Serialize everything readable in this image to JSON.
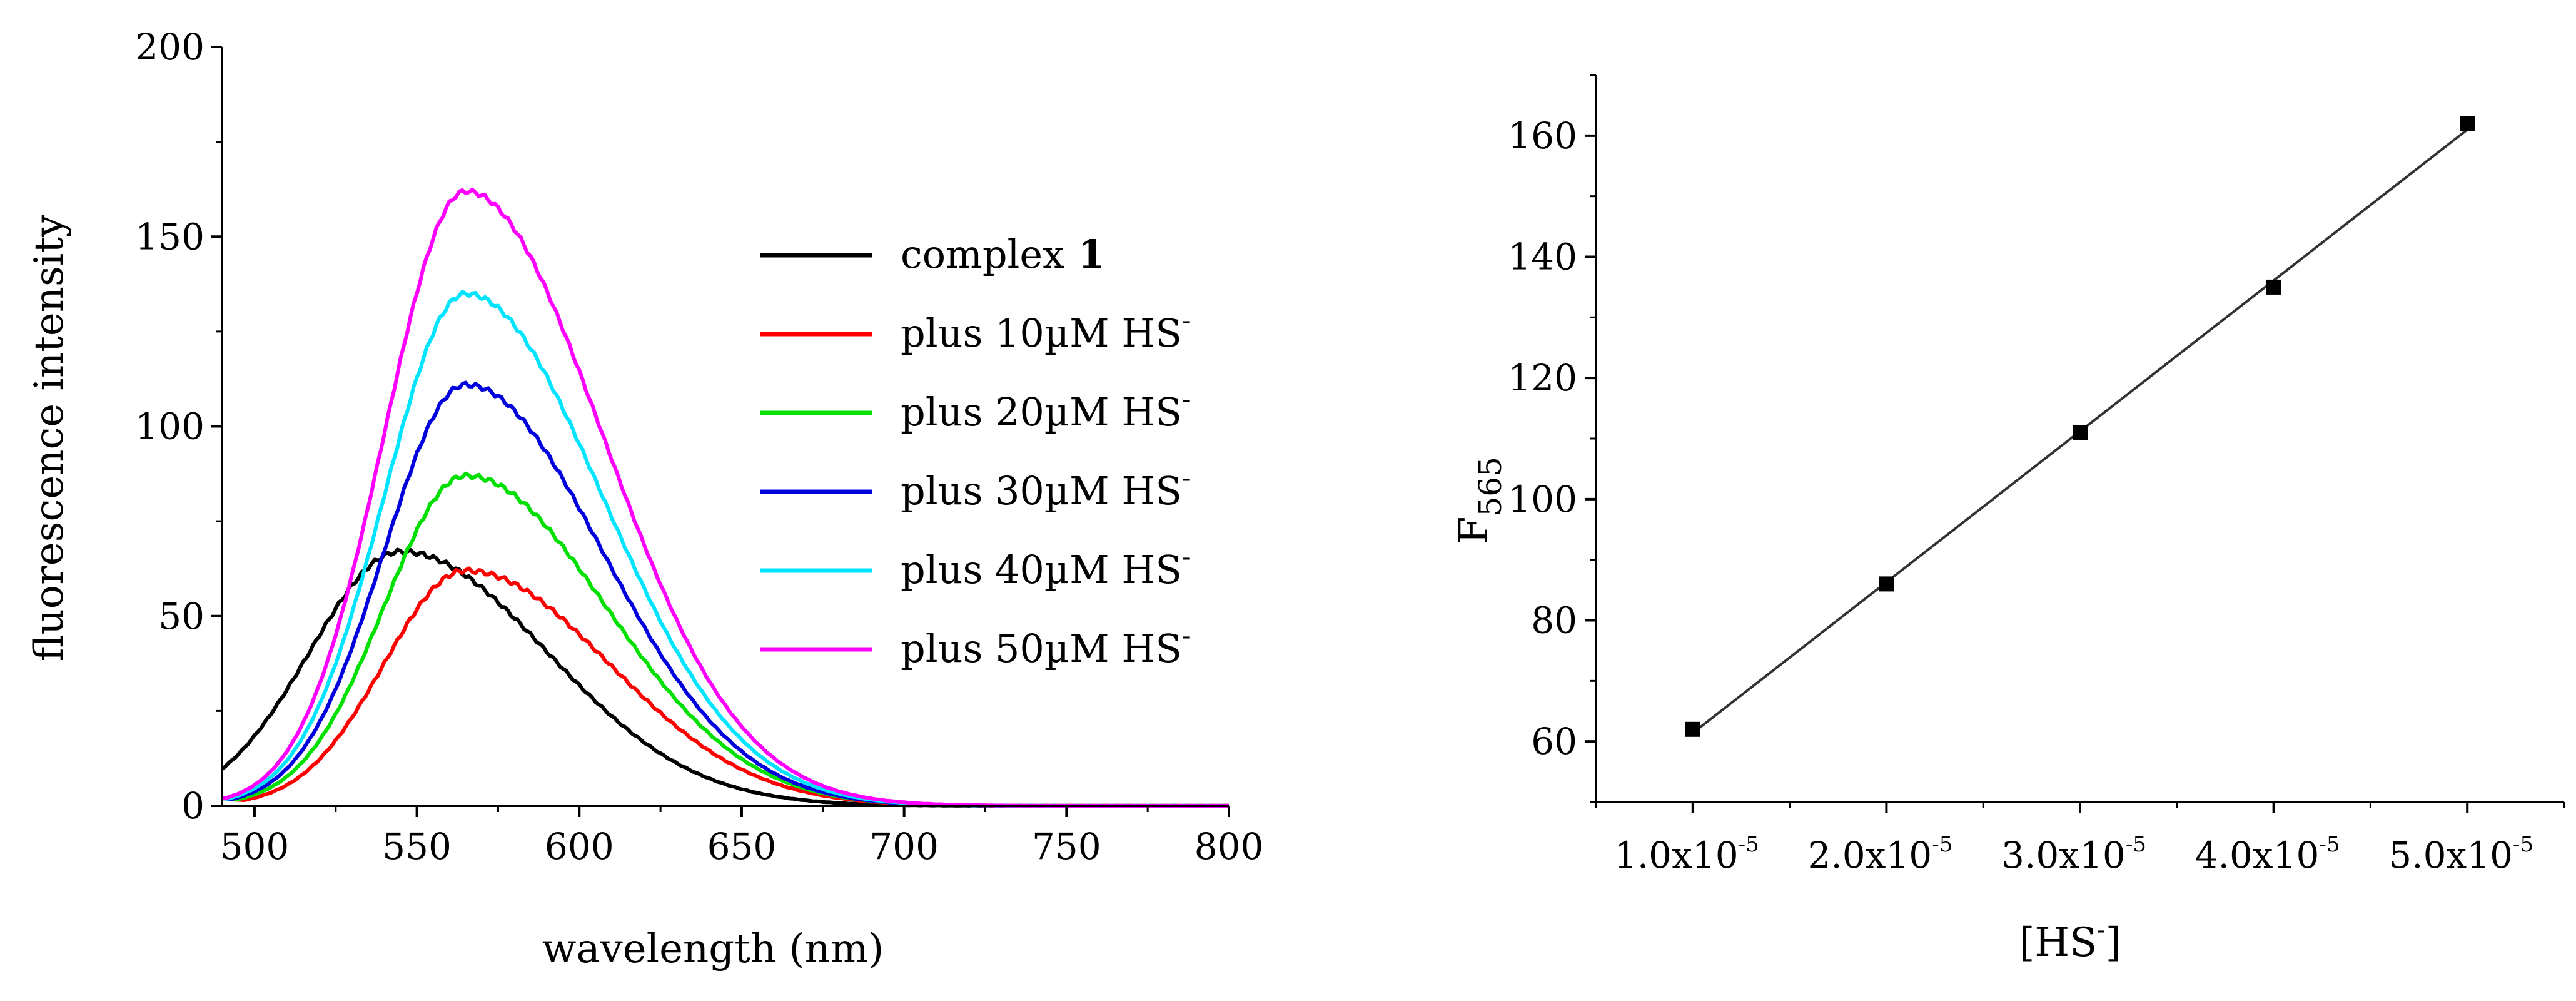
{
  "chart_data": [
    {
      "type": "line",
      "xlabel": "wavelength (nm)",
      "ylabel": "fluorescence intensity",
      "xlim": [
        490,
        800
      ],
      "ylim": [
        0,
        200
      ],
      "xticks": [
        500,
        550,
        600,
        650,
        700,
        750,
        800
      ],
      "yticks": [
        0,
        50,
        100,
        150,
        200
      ],
      "grid": false,
      "legend_position": "right",
      "series": [
        {
          "name": "complex",
          "name_bold": "1",
          "color": "#000000",
          "peak_x": 545,
          "peak_y": 67,
          "sigma_left": 28,
          "sigma_right": 45,
          "start_y": 3
        },
        {
          "name": "plus 10µM HS",
          "superscript": "-",
          "color": "#ff0000",
          "peak_x": 565,
          "peak_y": 62,
          "sigma_left": 25,
          "sigma_right": 44,
          "start_y": 2
        },
        {
          "name": "plus 20µM HS",
          "superscript": "-",
          "color": "#00e000",
          "peak_x": 565,
          "peak_y": 87,
          "sigma_left": 25,
          "sigma_right": 43,
          "start_y": 2
        },
        {
          "name": "plus 30µM HS",
          "superscript": "-",
          "color": "#0000dd",
          "peak_x": 565,
          "peak_y": 111,
          "sigma_left": 25,
          "sigma_right": 42,
          "start_y": 2
        },
        {
          "name": "plus 40µM HS",
          "superscript": "-",
          "color": "#00e5ff",
          "peak_x": 565,
          "peak_y": 135,
          "sigma_left": 25,
          "sigma_right": 42,
          "start_y": 2
        },
        {
          "name": "plus 50µM HS",
          "superscript": "-",
          "color": "#ff00ff",
          "peak_x": 565,
          "peak_y": 162,
          "sigma_left": 25,
          "sigma_right": 42,
          "start_y": 2
        }
      ]
    },
    {
      "type": "scatter",
      "xlabel": "[HS",
      "xlabel_superscript": "-",
      "xlabel_suffix": "]",
      "ylabel": "F",
      "ylabel_subscript": "565",
      "xlim": [
        5e-06,
        5.5e-05
      ],
      "ylim": [
        50,
        170
      ],
      "xticks": [
        1e-05,
        2e-05,
        3e-05,
        4e-05,
        5e-05
      ],
      "xtick_labels": [
        "1.0x10",
        "2.0x10",
        "3.0x10",
        "4.0x10",
        "5.0x10"
      ],
      "xtick_exponent": "-5",
      "yticks": [
        60,
        80,
        100,
        120,
        140,
        160
      ],
      "grid": false,
      "fit_line": true,
      "x": [
        1e-05,
        2e-05,
        3e-05,
        4e-05,
        5e-05
      ],
      "y": [
        62,
        86,
        111,
        135,
        162
      ]
    }
  ]
}
